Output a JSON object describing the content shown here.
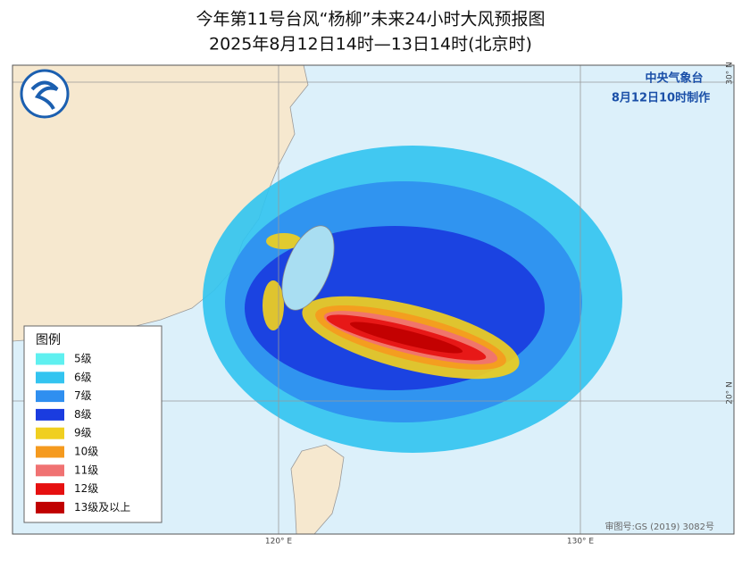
{
  "header": {
    "title": "今年第11号台风“杨柳”未来24小时大风预报图",
    "subtitle": "2025年8月12日14时—13日14时(北京时)"
  },
  "issuer": {
    "agency": "中央气象台",
    "issued": "8月12日10时制作"
  },
  "grid_labels": {
    "lon_120": "120° E",
    "lon_130": "130° E",
    "lat_30": "30° N",
    "lat_20": "20° N"
  },
  "legend": {
    "title": "图例",
    "items": [
      {
        "label": "5级",
        "color": "#5ff0f0"
      },
      {
        "label": "6级",
        "color": "#33c4f0"
      },
      {
        "label": "7级",
        "color": "#2f8ff0"
      },
      {
        "label": "8级",
        "color": "#1a3ce0"
      },
      {
        "label": "9级",
        "color": "#f0cf20"
      },
      {
        "label": "10级",
        "color": "#f59a1e"
      },
      {
        "label": "11级",
        "color": "#f07272"
      },
      {
        "label": "12级",
        "color": "#e61010"
      },
      {
        "label": "13级及以上",
        "color": "#c00000"
      }
    ]
  },
  "footer": {
    "approval": "审图号:GS (2019) 3082号"
  }
}
